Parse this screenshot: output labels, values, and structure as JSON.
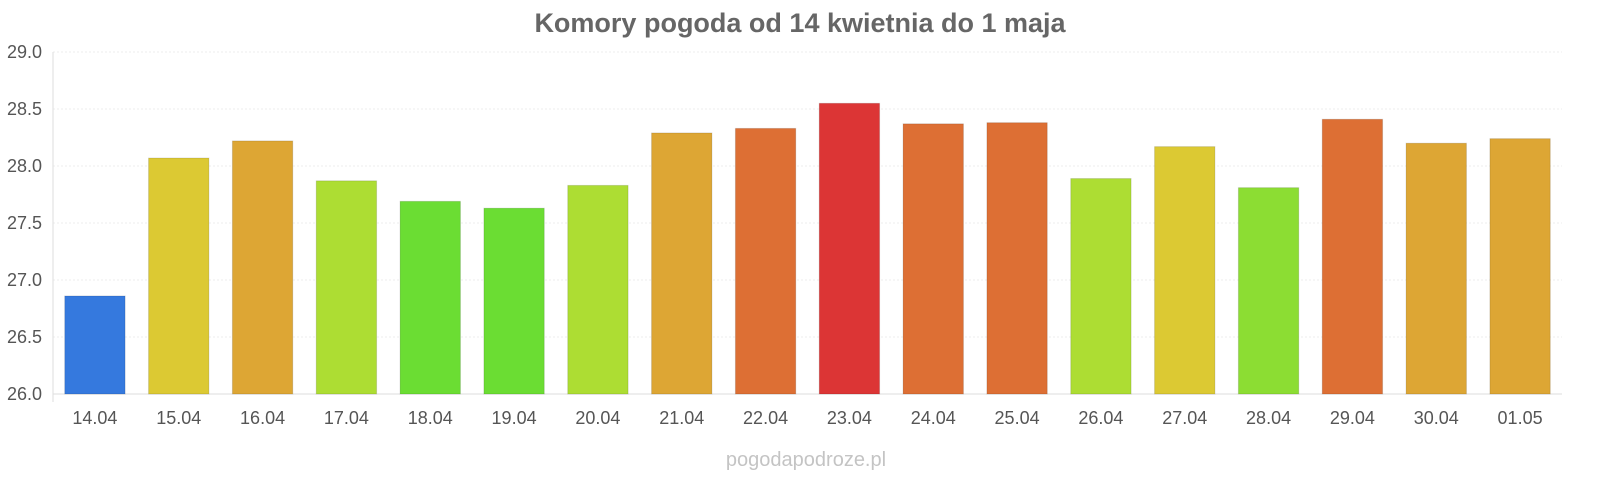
{
  "chart_data": {
    "type": "bar",
    "title": "Komory pogoda od 14 kwietnia do 1 maja",
    "xlabel": "",
    "ylabel": "",
    "categories": [
      "14.04",
      "15.04",
      "16.04",
      "17.04",
      "18.04",
      "19.04",
      "20.04",
      "21.04",
      "22.04",
      "23.04",
      "24.04",
      "25.04",
      "26.04",
      "27.04",
      "28.04",
      "29.04",
      "30.04",
      "01.05"
    ],
    "values": [
      26.86,
      28.07,
      28.22,
      27.87,
      27.69,
      27.63,
      27.83,
      28.29,
      28.33,
      28.55,
      28.37,
      28.38,
      27.89,
      28.17,
      27.81,
      28.41,
      28.2,
      28.24
    ],
    "colors": [
      "#3579de",
      "#dcc933",
      "#dda634",
      "#addd33",
      "#6bdd33",
      "#6bdd33",
      "#addd33",
      "#dda634",
      "#dd6f34",
      "#dc3535",
      "#dd6f34",
      "#dd6f34",
      "#addd33",
      "#dcc933",
      "#8cdd33",
      "#dd6f34",
      "#dda634",
      "#dda634"
    ],
    "ylim": [
      26.0,
      29.0
    ],
    "yticks": [
      "26.0",
      "26.5",
      "27.0",
      "27.5",
      "28.0",
      "28.5",
      "29.0"
    ],
    "grid": true,
    "legend": "none"
  },
  "footer": {
    "source": "pogodapodroze.pl"
  }
}
